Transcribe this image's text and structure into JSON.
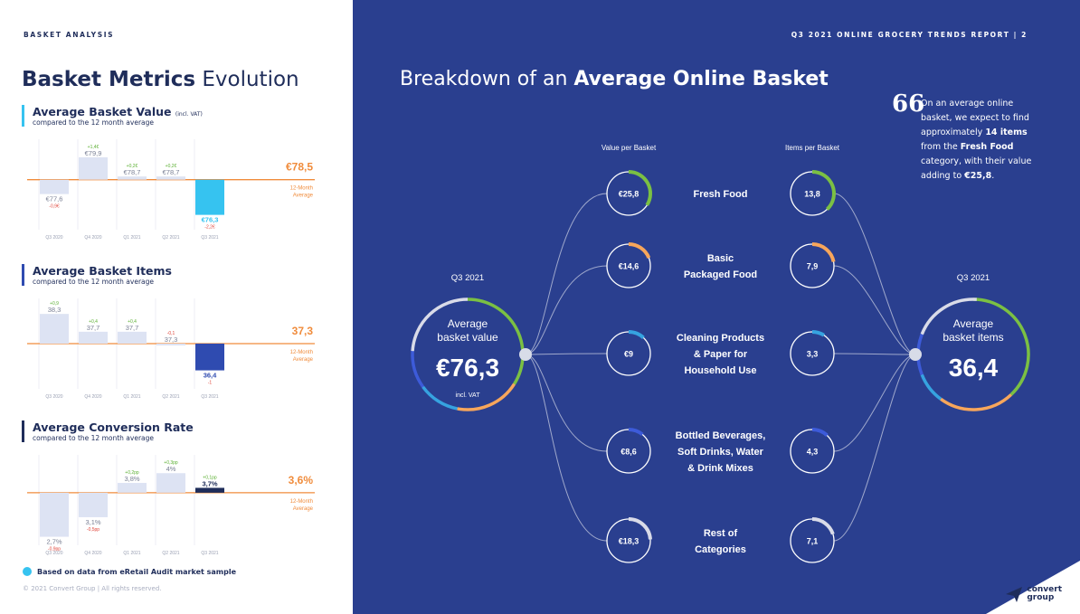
{
  "left": {
    "section_label": "BASKET ANALYSIS",
    "title_bold": "Basket Metrics",
    "title_rest": "Evolution",
    "footnote": "Based on data from eRetail Audit market sample",
    "copyright": "© 2021 Convert Group  |  All rights reserved."
  },
  "right": {
    "report_label": "Q3 2021 ONLINE GROCERY TRENDS REPORT  |  2",
    "title_pre": "Breakdown of an",
    "title_bold": "Average Online Basket",
    "quote_mark": "66",
    "quote_1": "On an average online basket, we expect to find approximately",
    "quote_2": "14 items",
    "quote_3": "from the",
    "quote_4": "Fresh Food",
    "quote_5": "category, with their value adding to",
    "quote_6": "€25,8",
    "quote_7": ".",
    "col_value": "Value per Basket",
    "col_items": "Items per Basket",
    "left_hub": {
      "period": "Q3 2021",
      "label_1": "Average",
      "label_2": "basket value",
      "value": "€76,3",
      "note": "incl. VAT"
    },
    "right_hub": {
      "period": "Q3 2021",
      "label_1": "Average",
      "label_2": "basket items",
      "value": "36,4"
    },
    "categories": [
      {
        "lines": [
          "Fresh Food"
        ],
        "value": "€25,8",
        "items": "13,8",
        "value_fill": 0.34,
        "items_fill": 0.38,
        "color": "#7bc043"
      },
      {
        "lines": [
          "Basic",
          "Packaged Food"
        ],
        "value": "€14,6",
        "items": "7,9",
        "value_fill": 0.19,
        "items_fill": 0.22,
        "color": "#f7a65b"
      },
      {
        "lines": [
          "Cleaning Products",
          "& Paper for",
          "Household Use"
        ],
        "value": "€9",
        "items": "3,3",
        "value_fill": 0.12,
        "items_fill": 0.09,
        "color": "#36a3e0"
      },
      {
        "lines": [
          "Bottled Beverages,",
          "Soft Drinks, Water",
          "& Drink Mixes"
        ],
        "value": "€8,6",
        "items": "4,3",
        "value_fill": 0.11,
        "items_fill": 0.12,
        "color": "#3d5bd9"
      },
      {
        "lines": [
          "Rest of",
          "Categories"
        ],
        "value": "€18,3",
        "items": "7,1",
        "value_fill": 0.24,
        "items_fill": 0.2,
        "color": "#d9dbe8"
      }
    ],
    "logo_1": "convert",
    "logo_2": "group"
  },
  "chart_data": [
    {
      "type": "bar",
      "title": "Average Basket Value",
      "title_note": "(incl. VAT)",
      "subtitle": "compared to the 12 month average",
      "categories": [
        "Q3 2020",
        "Q4 2020",
        "Q1 2021",
        "Q2 2021",
        "Q3 2021"
      ],
      "values": [
        77.6,
        79.9,
        78.7,
        78.7,
        76.3
      ],
      "value_labels": [
        "€77,6",
        "€79,9",
        "€78,7",
        "€78,7",
        "€76,3"
      ],
      "delta_labels": [
        "-0,9€",
        "+1,4€",
        "+0,2€",
        "+0,2€",
        "-2,2€"
      ],
      "average": 78.5,
      "average_label": "€78,5",
      "average_caption": [
        "12-Month",
        "Average"
      ],
      "ylim": [
        75.6,
        80.8
      ],
      "highlight_color": "#36c3f0"
    },
    {
      "type": "bar",
      "title": "Average Basket Items",
      "title_note": "",
      "subtitle": "compared to the 12 month average",
      "categories": [
        "Q3 2020",
        "Q4 2020",
        "Q1 2021",
        "Q2 2021",
        "Q3 2021"
      ],
      "values": [
        38.3,
        37.7,
        37.7,
        37.3,
        36.4
      ],
      "value_labels": [
        "38,3",
        "37,7",
        "37,7",
        "37,3",
        "36,4"
      ],
      "delta_labels": [
        "+0,9",
        "+0,4",
        "+0,4",
        "-0,1",
        "-1"
      ],
      "average": 37.3,
      "average_label": "37,3",
      "average_caption": [
        "12-Month",
        "Average"
      ],
      "ylim": [
        35.9,
        38.7
      ],
      "highlight_color": "#2f4bb0"
    },
    {
      "type": "bar",
      "title": "Average Conversion Rate",
      "title_note": "",
      "subtitle": "compared to the 12 month average",
      "categories": [
        "Q3 2020",
        "Q4 2020",
        "Q1 2021",
        "Q2 2021",
        "Q3 2021"
      ],
      "values": [
        2.7,
        3.1,
        3.8,
        4.0,
        3.7
      ],
      "value_labels": [
        "2,7%",
        "3,1%",
        "3,8%",
        "4%",
        "3,7%"
      ],
      "delta_labels": [
        "-0,9pp",
        "-0,5pp",
        "+0,2pp",
        "+0,3pp",
        "+0,1pp"
      ],
      "average": 3.6,
      "average_label": "3,6%",
      "average_caption": [
        "12-Month",
        "Average"
      ],
      "ylim": [
        2.6,
        4.3
      ],
      "highlight_color": "#1f2d5a"
    }
  ]
}
